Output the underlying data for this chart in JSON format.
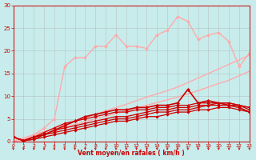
{
  "bg_color": "#c8ecec",
  "grid_color": "#b0b0b0",
  "xlabel": "Vent moyen/en rafales ( km/h )",
  "xlabel_color": "#cc0000",
  "tick_color": "#cc0000",
  "xlim": [
    0,
    23
  ],
  "ylim": [
    0,
    30
  ],
  "yticks": [
    0,
    5,
    10,
    15,
    20,
    25,
    30
  ],
  "xticks": [
    0,
    1,
    2,
    3,
    4,
    5,
    6,
    7,
    8,
    9,
    10,
    11,
    12,
    13,
    14,
    15,
    16,
    17,
    18,
    19,
    20,
    21,
    22,
    23
  ],
  "series": [
    {
      "y": [
        0.0,
        0.8,
        1.5,
        2.2,
        3.0,
        3.8,
        4.5,
        5.2,
        6.0,
        6.8,
        7.5,
        8.2,
        9.0,
        9.8,
        10.5,
        11.2,
        12.0,
        13.0,
        14.0,
        15.0,
        16.0,
        17.0,
        18.0,
        19.0
      ],
      "color": "#ffaaaa",
      "lw": 1.0,
      "marker": null,
      "ms": 0
    },
    {
      "y": [
        0.0,
        0.5,
        1.0,
        1.7,
        2.4,
        3.1,
        3.8,
        4.4,
        5.0,
        5.6,
        6.2,
        6.8,
        7.4,
        8.0,
        8.6,
        9.2,
        9.8,
        10.5,
        11.2,
        12.0,
        12.8,
        13.5,
        14.5,
        15.5
      ],
      "color": "#ffaaaa",
      "lw": 1.0,
      "marker": null,
      "ms": 0
    },
    {
      "y": [
        1.0,
        0.2,
        1.5,
        3.0,
        5.0,
        16.5,
        18.5,
        18.5,
        21.0,
        21.0,
        23.5,
        21.0,
        21.0,
        20.5,
        23.5,
        24.5,
        27.5,
        26.5,
        22.5,
        23.5,
        24.0,
        22.0,
        16.5,
        19.5
      ],
      "color": "#ffaaaa",
      "lw": 1.0,
      "marker": "D",
      "ms": 2.0
    },
    {
      "y": [
        1.0,
        0.2,
        0.5,
        1.0,
        1.5,
        2.0,
        2.5,
        3.0,
        3.5,
        4.0,
        4.5,
        4.5,
        5.0,
        5.5,
        5.5,
        6.0,
        6.5,
        6.5,
        7.0,
        7.0,
        7.5,
        7.5,
        7.0,
        6.5
      ],
      "color": "#cc0000",
      "lw": 0.9,
      "marker": "D",
      "ms": 1.8
    },
    {
      "y": [
        1.0,
        0.2,
        0.5,
        1.5,
        2.0,
        2.5,
        3.0,
        3.5,
        4.0,
        4.5,
        5.0,
        5.0,
        5.5,
        6.0,
        6.5,
        6.5,
        7.0,
        7.0,
        7.5,
        8.0,
        8.0,
        8.0,
        8.0,
        7.0
      ],
      "color": "#cc0000",
      "lw": 0.9,
      "marker": "D",
      "ms": 1.8
    },
    {
      "y": [
        1.0,
        0.2,
        1.0,
        1.5,
        2.5,
        3.0,
        3.5,
        4.0,
        4.5,
        5.0,
        5.5,
        5.5,
        6.0,
        6.5,
        7.0,
        7.0,
        7.5,
        7.5,
        8.0,
        8.0,
        8.5,
        8.5,
        8.0,
        7.5
      ],
      "color": "#cc0000",
      "lw": 0.9,
      "marker": "D",
      "ms": 1.8
    },
    {
      "y": [
        1.0,
        0.2,
        1.0,
        2.0,
        3.0,
        4.0,
        4.5,
        5.0,
        5.5,
        6.0,
        6.5,
        6.5,
        7.0,
        7.0,
        7.5,
        7.5,
        8.0,
        8.0,
        8.5,
        8.5,
        8.5,
        8.5,
        8.0,
        7.5
      ],
      "color": "#cc0000",
      "lw": 0.9,
      "marker": "D",
      "ms": 1.8
    },
    {
      "y": [
        1.0,
        0.2,
        1.0,
        1.5,
        2.5,
        3.5,
        4.5,
        5.5,
        6.0,
        6.5,
        7.0,
        7.0,
        7.5,
        7.5,
        8.0,
        8.0,
        8.5,
        11.5,
        8.5,
        9.0,
        8.5,
        8.0,
        7.5,
        6.5
      ],
      "color": "#cc0000",
      "lw": 1.2,
      "marker": "D",
      "ms": 2.2
    }
  ],
  "arrow_color": "#cc0000",
  "figsize": [
    3.2,
    2.0
  ],
  "dpi": 100
}
